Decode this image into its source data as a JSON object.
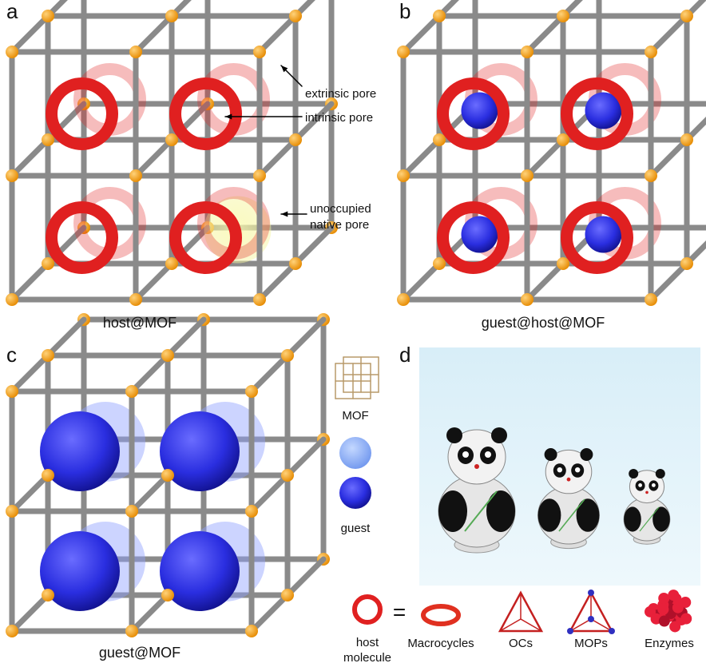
{
  "panels": {
    "a": "a",
    "b": "b",
    "c": "c",
    "d": "d"
  },
  "captions": {
    "a": "host@MOF",
    "b": "guest@host@MOF",
    "c": "guest@MOF"
  },
  "annotations": {
    "extrinsic": "extrinsic pore",
    "intrinsic": "intrinsic pore",
    "unoccupied": [
      "unoccupied",
      "native pore"
    ]
  },
  "legend": {
    "mof": "MOF",
    "guest": "guest"
  },
  "host_row": {
    "host": [
      "host",
      "molecule"
    ],
    "equals": "=",
    "items": [
      "Macrocycles",
      "OCs",
      "MOPs",
      "Enzymes"
    ]
  }
}
